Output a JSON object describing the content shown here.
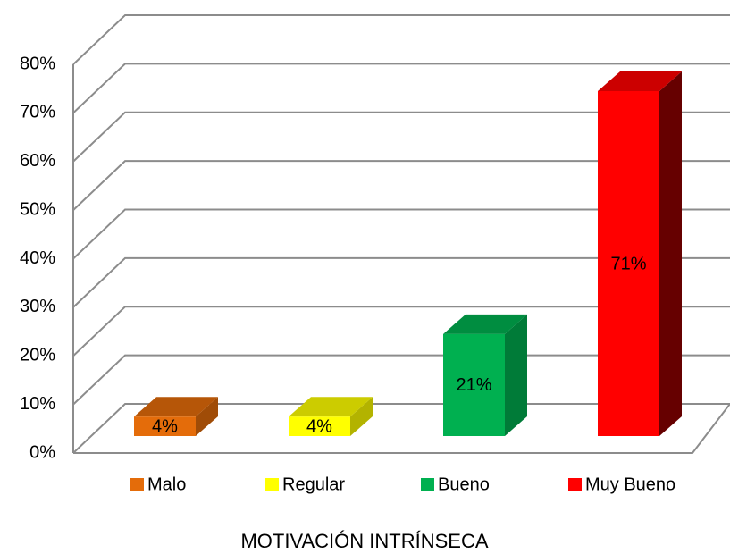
{
  "chart_data": {
    "type": "bar3d",
    "categories": [
      "Malo",
      "Regular",
      "Bueno",
      "Muy Bueno"
    ],
    "values": [
      4,
      4,
      21,
      71
    ],
    "value_labels": [
      "4%",
      "4%",
      "21%",
      "71%"
    ],
    "colors": [
      "#e46c0a",
      "#ffff00",
      "#00b050",
      "#ff0000"
    ],
    "ylim": [
      0,
      80
    ],
    "yticks": [
      {
        "value": 0,
        "label": "0%"
      },
      {
        "value": 10,
        "label": "10%"
      },
      {
        "value": 20,
        "label": "20%"
      },
      {
        "value": 30,
        "label": "30%"
      },
      {
        "value": 40,
        "label": "40%"
      },
      {
        "value": 50,
        "label": "50%"
      },
      {
        "value": 60,
        "label": "60%"
      },
      {
        "value": 70,
        "label": "70%"
      },
      {
        "value": 80,
        "label": "80%"
      }
    ],
    "grid": true,
    "xlabel": "MOTIVACIÓN INTRÍNSECA"
  }
}
